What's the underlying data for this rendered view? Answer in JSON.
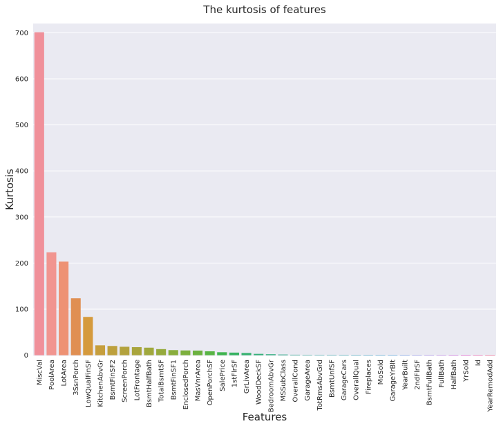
{
  "chart_data": {
    "type": "bar",
    "title": "The kurtosis of features",
    "xlabel": "Features",
    "ylabel": "Kurtosis",
    "ylim": [
      -2,
      720
    ],
    "yticks": [
      0,
      100,
      200,
      300,
      400,
      500,
      600,
      700
    ],
    "grid": true,
    "legend": "none",
    "categories": [
      "MiscVal",
      "PoolArea",
      "LotArea",
      "3SsnPorch",
      "LowQualFinSF",
      "KitchenAbvGr",
      "BsmtFinSF2",
      "ScreenPorch",
      "LotFrontage",
      "BsmtHalfBath",
      "TotalBsmtSF",
      "BsmtFinSF1",
      "EnclosedPorch",
      "MasVnrArea",
      "OpenPorchSF",
      "SalePrice",
      "1stFlrSF",
      "GrLivArea",
      "WoodDeckSF",
      "BedroomAbvGr",
      "MSSubClass",
      "OverallCond",
      "GarageArea",
      "TotRmsAbvGrd",
      "BsmtUnfSF",
      "GarageCars",
      "OverallQual",
      "Fireplaces",
      "MoSold",
      "GarageYrBlt",
      "YearBuilt",
      "2ndFlrSF",
      "BsmtFullBath",
      "FullBath",
      "HalfBath",
      "YrSold",
      "Id",
      "YearRemodAdd"
    ],
    "values": [
      701.0,
      223.3,
      203.2,
      123.7,
      83.2,
      21.5,
      20.1,
      18.4,
      17.5,
      16.4,
      13.3,
      11.1,
      10.4,
      10.1,
      8.5,
      6.5,
      5.7,
      4.9,
      2.99,
      2.23,
      1.58,
      1.11,
      0.92,
      0.88,
      0.47,
      0.22,
      0.1,
      -0.22,
      -0.4,
      -0.42,
      -0.44,
      -0.55,
      -0.84,
      -0.86,
      -1.08,
      -1.19,
      -1.2,
      -1.27
    ],
    "colors": [
      "#f0909a",
      "#f19590",
      "#ee9274",
      "#e08f52",
      "#d59a3d",
      "#c69e3d",
      "#bda03d",
      "#b3a23d",
      "#a9a53d",
      "#a0a83d",
      "#95aa3d",
      "#89ad3d",
      "#7caf3d",
      "#6bb13f",
      "#58b444",
      "#3fb44f",
      "#37b262",
      "#36b16f",
      "#37b07a",
      "#37af83",
      "#38ae8b",
      "#38ad93",
      "#39ac9a",
      "#3aaba2",
      "#3baaaa",
      "#3ca9b2",
      "#3da7ba",
      "#3fa5c4",
      "#43a2cf",
      "#4a9edc",
      "#6a97e6",
      "#8a8fe8",
      "#a385e6",
      "#b97ce4",
      "#cf72dc",
      "#e46cd0",
      "#ee79b8",
      "#f283a4"
    ]
  }
}
